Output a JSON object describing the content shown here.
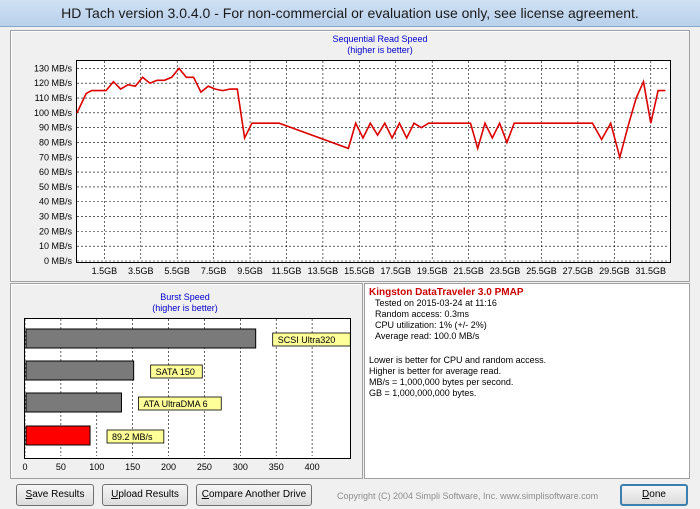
{
  "window": {
    "title": "HD Tach version 3.0.4.0  - For non-commercial or evaluation use only, see license agreement."
  },
  "colors": {
    "series": "#dd0000",
    "title_text": "#0000cc",
    "bar_gray": "#7a7a7a",
    "bar_highlight": "#ff0000",
    "label_bg": "#ffff99"
  },
  "seq_chart": {
    "title_line1": "Sequential Read Speed",
    "title_line2": "(higher is better)"
  },
  "burst_chart": {
    "title_line1": "Burst Speed",
    "title_line2": "(higher is better)"
  },
  "info": {
    "drive": "Kingston DataTraveler 3.0 PMAP",
    "lines": [
      "Tested on 2015-03-24 at 11:16",
      "Random access: 0.3ms",
      "CPU utilization: 1% (+/- 2%)",
      "Average read: 100.0 MB/s"
    ],
    "notes": [
      "Lower is better for CPU and random access.",
      "Higher is better for average read.",
      "MB/s = 1,000,000 bytes per second.",
      "GB = 1,000,000,000 bytes."
    ]
  },
  "buttons": {
    "save_key": "S",
    "save_rest": "ave Results",
    "upload_key": "U",
    "upload_rest": "pload Results",
    "compare_key": "C",
    "compare_rest": "ompare Another Drive",
    "done_key": "D",
    "done_rest": "one"
  },
  "copyright": "Copyright (C) 2004 Simpli Software, Inc. www.simplisoftware.com",
  "chart_data": [
    {
      "type": "line",
      "title": "Sequential Read Speed",
      "subtitle": "(higher is better)",
      "xlim": [
        0,
        32.5
      ],
      "ylim": [
        0,
        135
      ],
      "y_ticks": [
        0,
        10,
        20,
        30,
        40,
        50,
        60,
        70,
        80,
        90,
        100,
        110,
        120,
        130
      ],
      "y_tick_labels": [
        "0 MB/s",
        "10 MB/s",
        "20 MB/s",
        "30 MB/s",
        "40 MB/s",
        "50 MB/s",
        "60 MB/s",
        "70 MB/s",
        "80 MB/s",
        "90 MB/s",
        "100 MB/s",
        "110 MB/s",
        "120 MB/s",
        "130 MB/s"
      ],
      "x_ticks": [
        1.5,
        3.5,
        5.5,
        7.5,
        9.5,
        11.5,
        13.5,
        15.5,
        17.5,
        19.5,
        21.5,
        23.5,
        25.5,
        27.5,
        29.5,
        31.5
      ],
      "x_tick_labels": [
        "1.5GB",
        "3.5GB",
        "5.5GB",
        "7.5GB",
        "9.5GB",
        "11.5GB",
        "13.5GB",
        "15.5GB",
        "17.5GB",
        "19.5GB",
        "21.5GB",
        "23.5GB",
        "25.5GB",
        "27.5GB",
        "29.5GB",
        "31.5GB"
      ],
      "grid": true,
      "x": [
        0,
        0.5,
        0.8,
        1.2,
        1.6,
        2.0,
        2.4,
        2.8,
        3.2,
        3.6,
        4.0,
        4.4,
        4.8,
        5.2,
        5.6,
        6.0,
        6.4,
        6.8,
        7.2,
        7.6,
        8.0,
        8.4,
        8.8,
        9.2,
        9.6,
        9.9,
        10.3,
        10.7,
        11.1,
        14.9,
        15.3,
        15.7,
        16.1,
        16.5,
        16.9,
        17.3,
        17.7,
        18.1,
        18.5,
        18.9,
        19.3,
        19.7,
        20.1,
        21.6,
        22.0,
        22.4,
        22.8,
        23.2,
        23.6,
        24.0,
        24.4,
        25.0,
        27.5,
        28.3,
        28.8,
        29.3,
        29.8,
        30.3,
        30.7,
        31.1,
        31.5,
        31.9,
        32.3
      ],
      "y": [
        100,
        113,
        115,
        115,
        115,
        121,
        116,
        119,
        118,
        124,
        120,
        122,
        122,
        124,
        130,
        124,
        124,
        114,
        118,
        116,
        115,
        116,
        116,
        83,
        93,
        93,
        93,
        93,
        93,
        76,
        93,
        83,
        93,
        85,
        93,
        83,
        93,
        83,
        93,
        90,
        93,
        93,
        93,
        93,
        76,
        93,
        83,
        93,
        80,
        93,
        93,
        93,
        93,
        93,
        82,
        93,
        70,
        93,
        110,
        121,
        93,
        115,
        115
      ]
    },
    {
      "type": "bar",
      "orientation": "horizontal",
      "title": "Burst Speed",
      "subtitle": "(higher is better)",
      "xlim": [
        0,
        450
      ],
      "x_ticks": [
        0,
        50,
        100,
        150,
        200,
        250,
        300,
        350,
        400
      ],
      "categories": [
        "SCSI Ultra320",
        "SATA 150",
        "ATA UltraDMA 6",
        "89.2 MB/s"
      ],
      "values": [
        320,
        150,
        133,
        89.2
      ],
      "highlight_index": 3,
      "grid": true
    }
  ]
}
